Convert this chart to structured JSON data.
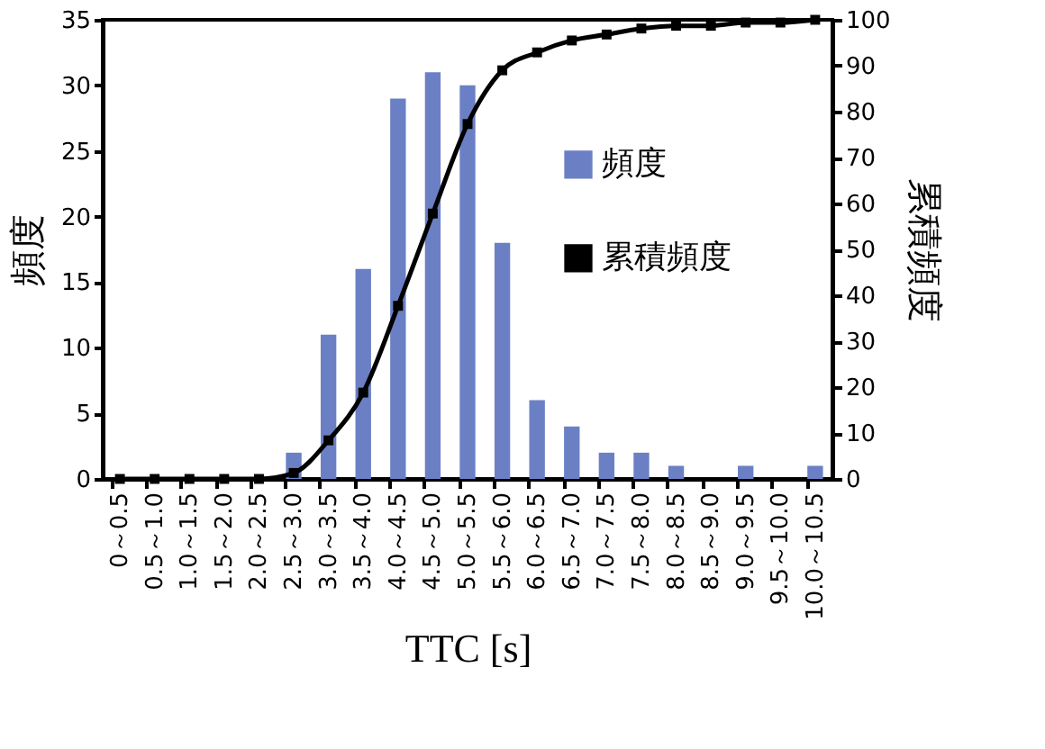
{
  "chart_data": {
    "type": "bar",
    "categories": [
      "0～0.5",
      "0.5～1.0",
      "1.0～1.5",
      "1.5～2.0",
      "2.0～2.5",
      "2.5～3.0",
      "3.0～3.5",
      "3.5～4.0",
      "4.0～4.5",
      "4.5～5.0",
      "5.0～5.5",
      "5.5～6.0",
      "6.0～6.5",
      "6.5～7.0",
      "7.0～7.5",
      "7.5～8.0",
      "8.0～8.5",
      "8.5～9.0",
      "9.0～9.5",
      "9.5～10.0",
      "10.0～10.5"
    ],
    "series": [
      {
        "name": "頻度",
        "color": "#6b80c4",
        "values": [
          0,
          0,
          0,
          0,
          0,
          2,
          11,
          16,
          29,
          31,
          30,
          18,
          6,
          4,
          2,
          2,
          1,
          0,
          1,
          0,
          1
        ]
      },
      {
        "name": "累積頻度",
        "type": "line",
        "axis": "y2",
        "color": "#000000",
        "marker": "square",
        "values": [
          0,
          0,
          0,
          0,
          0,
          1.3,
          8.4,
          18.8,
          37.7,
          57.8,
          77.3,
          89.0,
          92.9,
          95.5,
          96.8,
          98.1,
          98.7,
          98.7,
          99.4,
          99.4,
          100
        ]
      }
    ],
    "xlabel": "TTC [s]",
    "ylabel": "頻度",
    "y2label": "累積頻度",
    "ylim": [
      0,
      35
    ],
    "yticks": [
      0,
      5,
      10,
      15,
      20,
      25,
      30,
      35
    ],
    "y2lim": [
      0,
      100
    ],
    "y2ticks": [
      0,
      10,
      20,
      30,
      40,
      50,
      60,
      70,
      80,
      90,
      100
    ],
    "legend": "right"
  }
}
